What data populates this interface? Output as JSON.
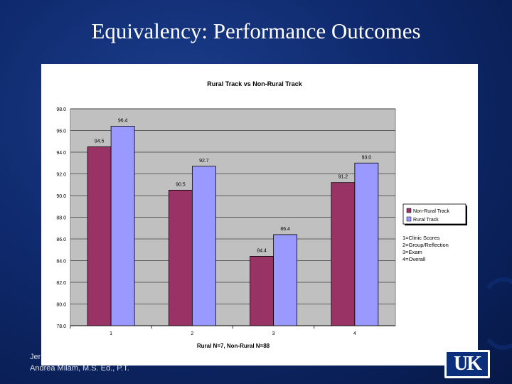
{
  "slide": {
    "title": "Equivalency:  Performance Outcomes",
    "footer_line1": "Jer",
    "footer_line2": "Andrea Milam, M.S. Ed., P.T.",
    "logo_text": "UK"
  },
  "colors": {
    "non_rural": "#993366",
    "rural": "#9999ff",
    "plot_bg": "#c0c0c0"
  },
  "chart_data": {
    "type": "bar",
    "title": "Rural Track vs Non-Rural Track",
    "xlabel": "Rural N=7, Non-Rural N=88",
    "ylabel": "",
    "categories": [
      "1",
      "2",
      "3",
      "4"
    ],
    "series": [
      {
        "name": "Non-Rural Track",
        "values": [
          94.5,
          90.5,
          84.4,
          91.2
        ],
        "labels": [
          "94.5",
          "90.5",
          "84.4",
          "91.2"
        ]
      },
      {
        "name": "Rural Track",
        "values": [
          96.4,
          92.7,
          86.4,
          93.0
        ],
        "labels": [
          "96.4",
          "92.7",
          "86.4",
          "93.0"
        ]
      }
    ],
    "ylim": [
      78,
      98
    ],
    "yticks": [
      "78.0",
      "80.0",
      "82.0",
      "84.0",
      "86.0",
      "88.0",
      "90.0",
      "92.0",
      "94.0",
      "96.0",
      "98.0"
    ],
    "grid": true,
    "legend_position": "right",
    "annotation_lines": [
      "1=Clinic Scores",
      "2=Group/Reflection",
      "3=Exam",
      "4=Overall"
    ]
  }
}
